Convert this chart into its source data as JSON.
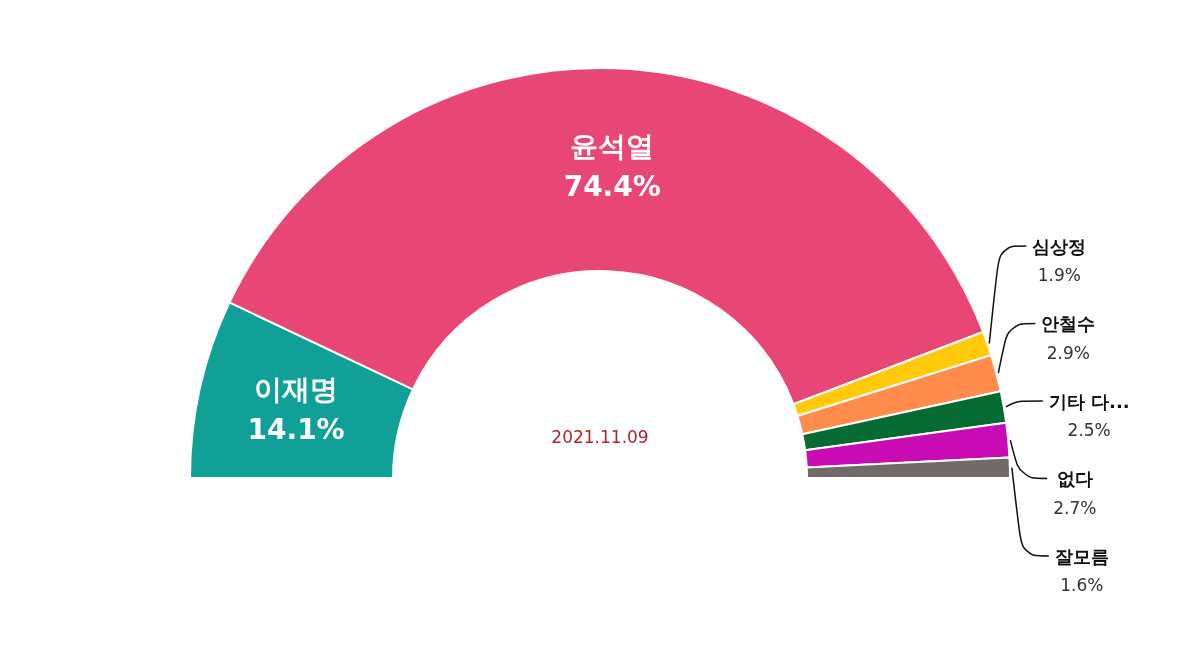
{
  "chart_data": {
    "type": "donut",
    "categories": [
      "이재명",
      "윤석열",
      "심상정",
      "안철수",
      "기타 다...",
      "없다",
      "잘모름"
    ],
    "values": [
      14.1,
      74.4,
      1.9,
      2.9,
      2.5,
      2.7,
      1.6
    ],
    "colors": [
      "#11a097",
      "#e84675",
      "#ffca0a",
      "#ff8c4c",
      "#066b33",
      "#c80bb5",
      "#716a69"
    ],
    "value_labels": [
      "14.1%",
      "74.4%",
      "1.9%",
      "2.9%",
      "2.5%",
      "2.7%",
      "1.6%"
    ],
    "annotations": [
      "2021.11.09"
    ]
  }
}
